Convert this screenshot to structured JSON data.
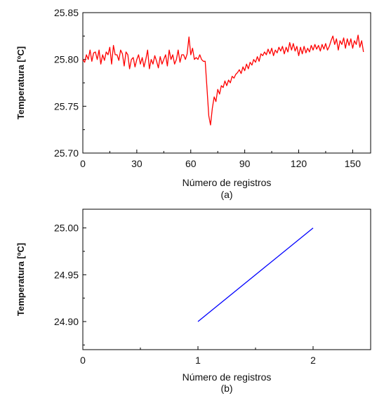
{
  "chart_data": [
    {
      "type": "line",
      "panel_label": "(a)",
      "xlabel": "Número de registros",
      "ylabel": "Temperatura [ºC]",
      "xlim": [
        0,
        160
      ],
      "ylim": [
        25.7,
        25.85
      ],
      "x_ticks": [
        0,
        30,
        60,
        90,
        120,
        150
      ],
      "x_tick_labels": [
        "0",
        "30",
        "60",
        "90",
        "120",
        "150"
      ],
      "y_ticks": [
        25.7,
        25.75,
        25.8,
        25.85
      ],
      "y_tick_labels": [
        "25.70",
        "25.75",
        "25.80",
        "25.85"
      ],
      "grid": false,
      "color": "#ff0000",
      "x_start": 0,
      "x_step": 1,
      "values": [
        25.8,
        25.797,
        25.805,
        25.8,
        25.81,
        25.798,
        25.807,
        25.808,
        25.8,
        25.81,
        25.795,
        25.805,
        25.799,
        25.808,
        25.805,
        25.813,
        25.795,
        25.815,
        25.805,
        25.805,
        25.799,
        25.81,
        25.806,
        25.793,
        25.808,
        25.805,
        25.79,
        25.8,
        25.802,
        25.792,
        25.8,
        25.805,
        25.795,
        25.802,
        25.792,
        25.8,
        25.81,
        25.79,
        25.8,
        25.795,
        25.804,
        25.798,
        25.791,
        25.803,
        25.795,
        25.8,
        25.805,
        25.793,
        25.81,
        25.8,
        25.805,
        25.795,
        25.8,
        25.81,
        25.797,
        25.805,
        25.805,
        25.8,
        25.806,
        25.824,
        25.805,
        25.812,
        25.8,
        25.802,
        25.8,
        25.805,
        25.8,
        25.798,
        25.798,
        25.77,
        25.74,
        25.73,
        25.748,
        25.76,
        25.755,
        25.768,
        25.763,
        25.772,
        25.77,
        25.777,
        25.772,
        25.778,
        25.775,
        25.782,
        25.78,
        25.784,
        25.786,
        25.789,
        25.785,
        25.792,
        25.788,
        25.795,
        25.79,
        25.797,
        25.794,
        25.8,
        25.797,
        25.803,
        25.798,
        25.806,
        25.804,
        25.808,
        25.805,
        25.811,
        25.806,
        25.812,
        25.804,
        25.81,
        25.807,
        25.813,
        25.809,
        25.814,
        25.806,
        25.813,
        25.808,
        25.818,
        25.81,
        25.817,
        25.809,
        25.814,
        25.804,
        25.813,
        25.806,
        25.814,
        25.807,
        25.812,
        25.808,
        25.815,
        25.81,
        25.816,
        25.811,
        25.815,
        25.809,
        25.816,
        25.811,
        25.817,
        25.81,
        25.814,
        25.82,
        25.825,
        25.816,
        25.822,
        25.81,
        25.82,
        25.816,
        25.823,
        25.812,
        25.822,
        25.815,
        25.822,
        25.812,
        25.82,
        25.816,
        25.826,
        25.813,
        25.82,
        25.808
      ]
    },
    {
      "type": "line",
      "panel_label": "(b)",
      "xlabel": "Número de registros",
      "ylabel": "Temperatura [ºC]",
      "xlim": [
        0,
        2.5
      ],
      "ylim": [
        24.87,
        25.02
      ],
      "x_ticks": [
        0,
        1,
        2
      ],
      "x_tick_labels": [
        "0",
        "1",
        "2"
      ],
      "y_ticks": [
        24.9,
        24.95,
        25.0
      ],
      "y_tick_labels": [
        "24.90",
        "24.95",
        "25.00"
      ],
      "grid": false,
      "color": "#0000ff",
      "x": [
        1,
        2
      ],
      "values": [
        24.9,
        25.0
      ]
    }
  ]
}
